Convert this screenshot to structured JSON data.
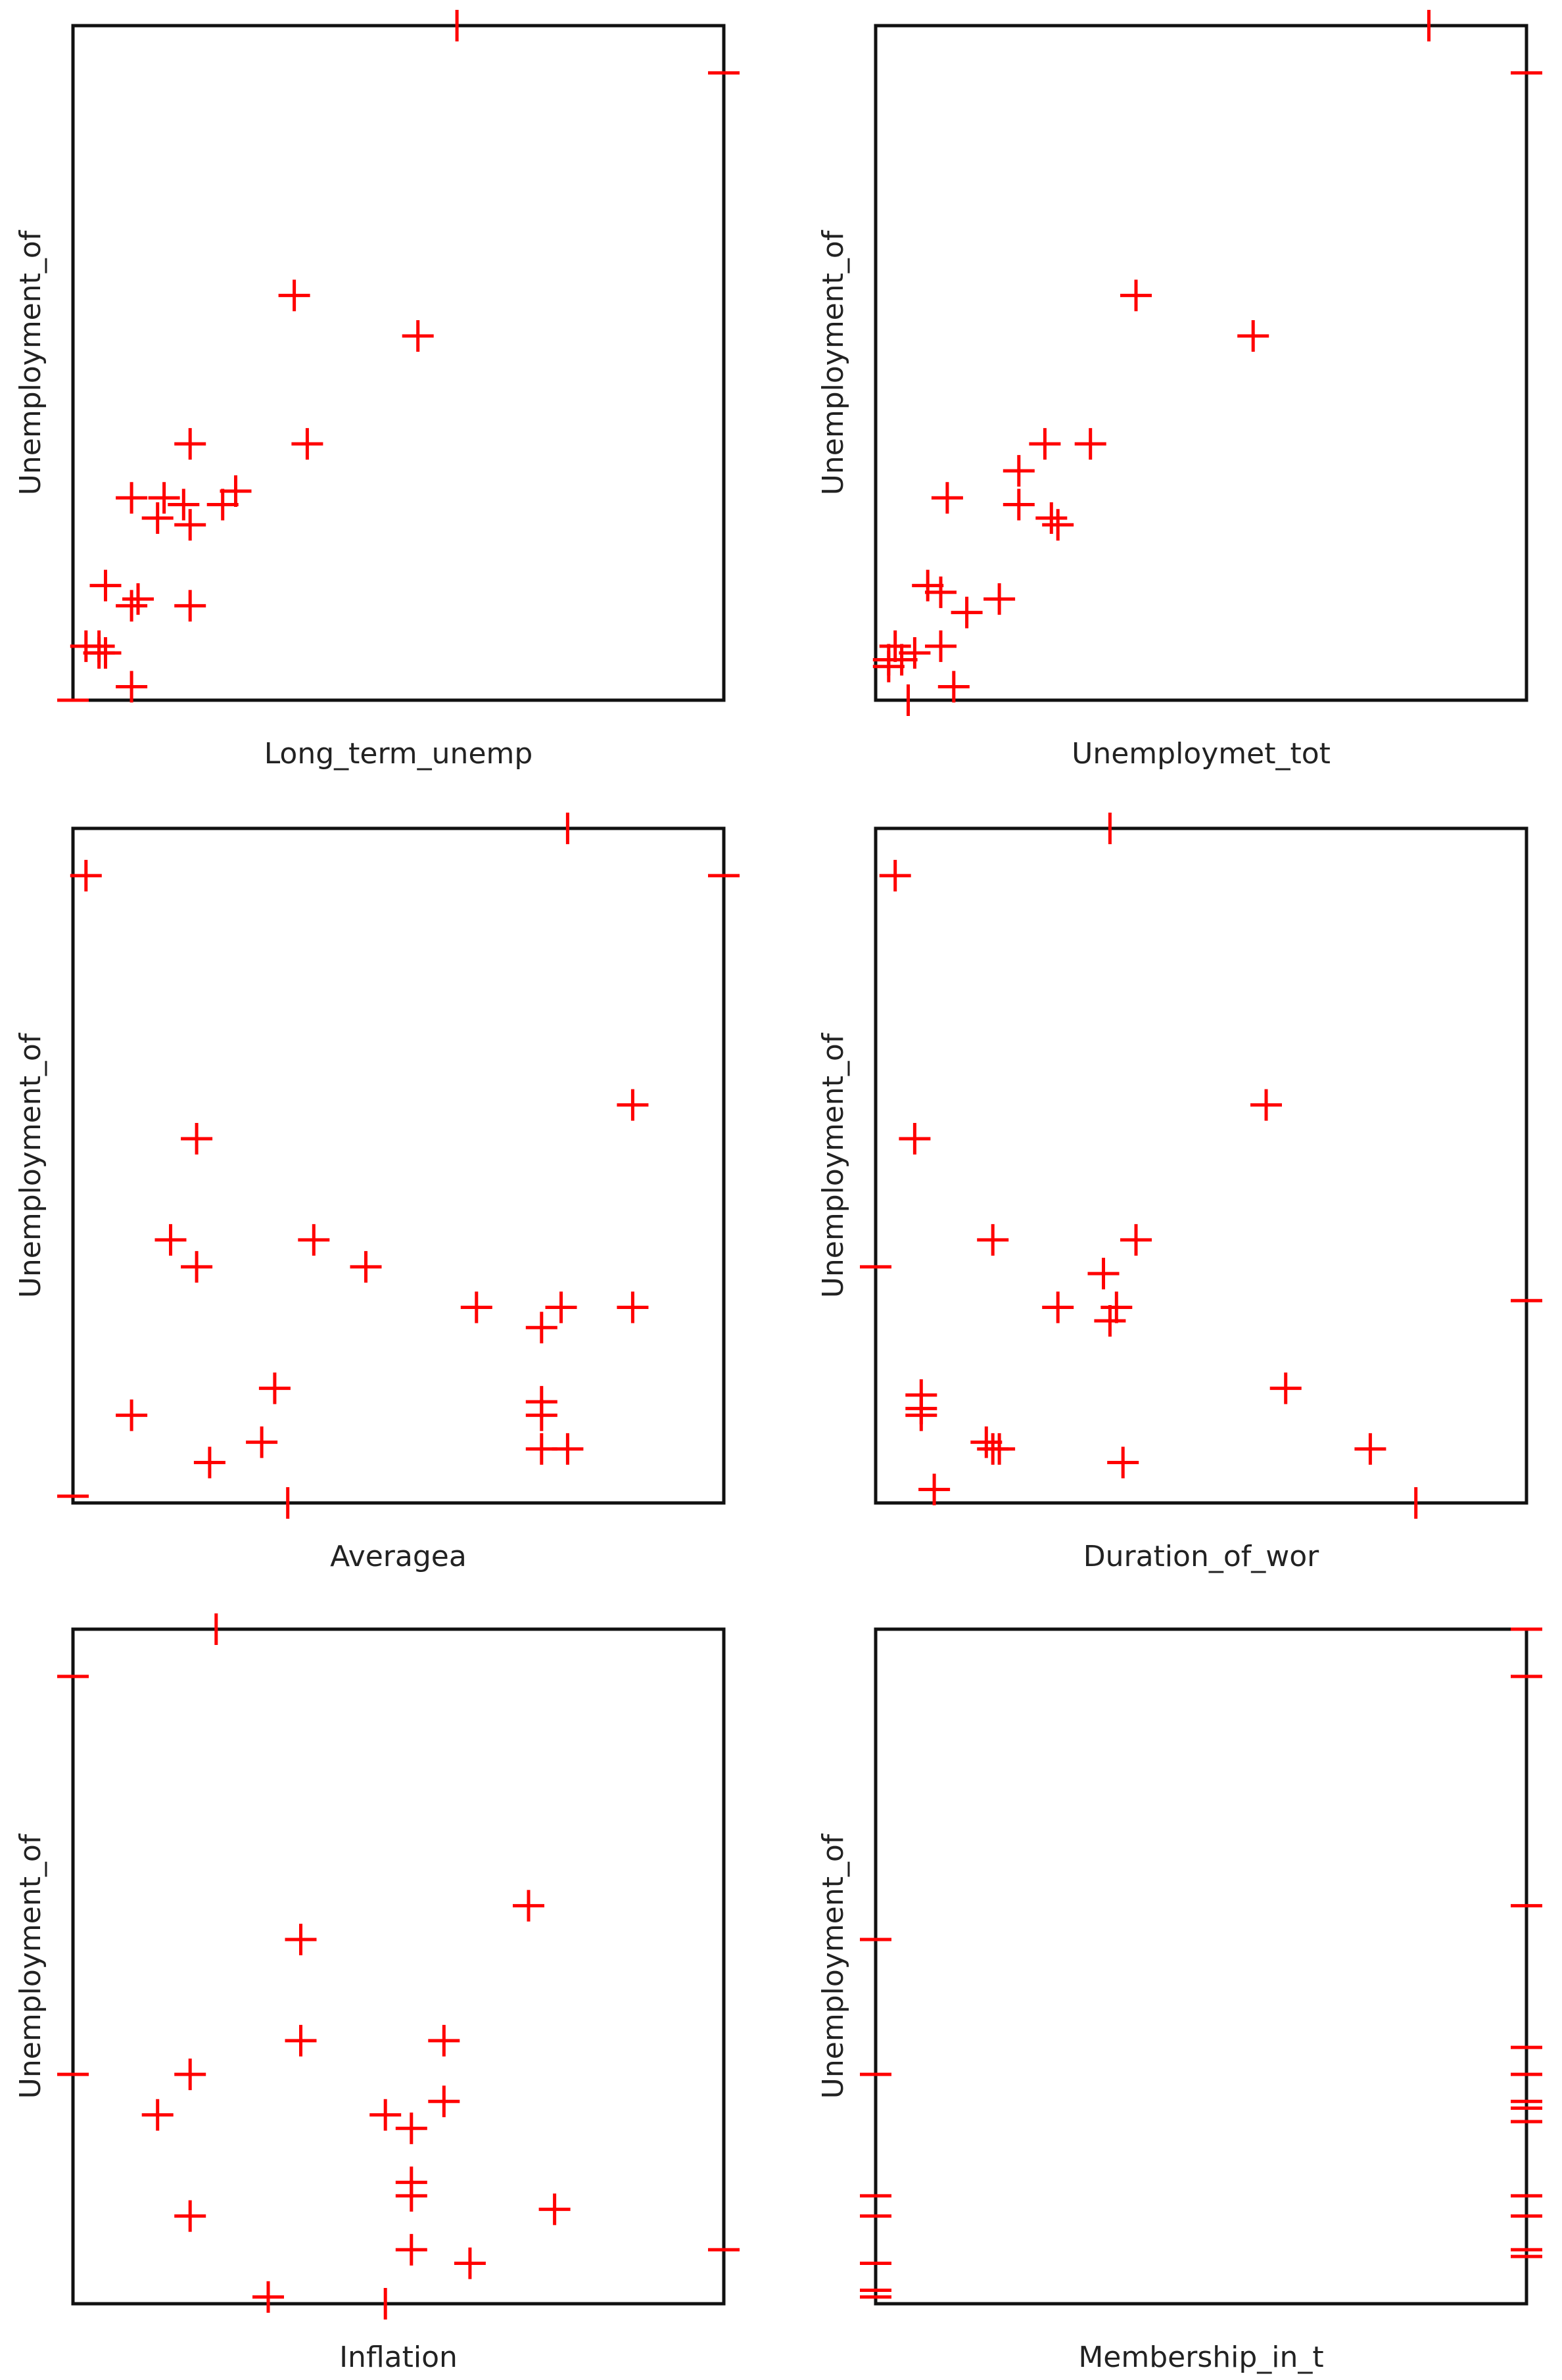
{
  "colors": {
    "marker": "#ff0000",
    "frame": "#111111",
    "text": "#222222"
  },
  "chart_data": [
    {
      "type": "scatter",
      "xlabel": "Long_term_unemp",
      "ylabel": "Unemployment_of",
      "xlim": [
        0,
        100
      ],
      "ylim": [
        0,
        100
      ],
      "points": [
        [
          34,
          60
        ],
        [
          53,
          54
        ],
        [
          36,
          38
        ],
        [
          18,
          38
        ],
        [
          25,
          31
        ],
        [
          14,
          30
        ],
        [
          9,
          30
        ],
        [
          13,
          27
        ],
        [
          17,
          29
        ],
        [
          23,
          29
        ],
        [
          18,
          26
        ],
        [
          5,
          17
        ],
        [
          10,
          15
        ],
        [
          18,
          14
        ],
        [
          9,
          14
        ],
        [
          4,
          8
        ],
        [
          2,
          8
        ],
        [
          4,
          7
        ],
        [
          5,
          7
        ],
        [
          9,
          2
        ]
      ],
      "edge_ticks": [
        {
          "side": "top",
          "pos": 59
        },
        {
          "side": "right",
          "pos": 93
        },
        {
          "side": "left",
          "pos": 0
        }
      ]
    },
    {
      "type": "scatter",
      "xlabel": "Unemploymet_tot",
      "ylabel": "Unemployment_of",
      "xlim": [
        0,
        100
      ],
      "ylim": [
        0,
        100
      ],
      "points": [
        [
          40,
          60
        ],
        [
          58,
          54
        ],
        [
          33,
          38
        ],
        [
          26,
          38
        ],
        [
          22,
          34
        ],
        [
          11,
          30
        ],
        [
          22,
          29
        ],
        [
          27,
          27
        ],
        [
          28,
          26
        ],
        [
          8,
          17
        ],
        [
          10,
          16
        ],
        [
          14,
          13
        ],
        [
          19,
          15
        ],
        [
          6,
          7
        ],
        [
          3,
          8
        ],
        [
          2,
          6
        ],
        [
          4,
          6
        ],
        [
          10,
          8
        ],
        [
          2,
          5
        ],
        [
          12,
          2
        ]
      ],
      "edge_ticks": [
        {
          "side": "top",
          "pos": 85
        },
        {
          "side": "right",
          "pos": 93
        },
        {
          "side": "bottom",
          "pos": 5
        }
      ]
    },
    {
      "type": "scatter",
      "xlabel": "Averagea",
      "ylabel": "Unemployment_of",
      "xlim": [
        0,
        100
      ],
      "ylim": [
        0,
        100
      ],
      "points": [
        [
          2,
          93
        ],
        [
          86,
          59
        ],
        [
          19,
          54
        ],
        [
          15,
          39
        ],
        [
          37,
          39
        ],
        [
          19,
          35
        ],
        [
          45,
          35
        ],
        [
          62,
          29
        ],
        [
          75,
          29
        ],
        [
          86,
          29
        ],
        [
          72,
          26
        ],
        [
          31,
          17
        ],
        [
          72,
          15
        ],
        [
          72,
          13
        ],
        [
          9,
          13
        ],
        [
          29,
          9
        ],
        [
          72,
          8
        ],
        [
          76,
          8
        ],
        [
          21,
          6
        ]
      ],
      "edge_ticks": [
        {
          "side": "top",
          "pos": 76
        },
        {
          "side": "right",
          "pos": 93
        },
        {
          "side": "left",
          "pos": 1
        },
        {
          "side": "bottom",
          "pos": 33
        }
      ]
    },
    {
      "type": "scatter",
      "xlabel": "Duration_of_wor",
      "ylabel": "Unemployment_of",
      "xlim": [
        0,
        100
      ],
      "ylim": [
        0,
        100
      ],
      "points": [
        [
          3,
          93
        ],
        [
          60,
          59
        ],
        [
          6,
          54
        ],
        [
          18,
          39
        ],
        [
          40,
          39
        ],
        [
          35,
          34
        ],
        [
          28,
          29
        ],
        [
          37,
          29
        ],
        [
          36,
          27
        ],
        [
          63,
          17
        ],
        [
          7,
          16
        ],
        [
          7,
          14
        ],
        [
          7,
          13
        ],
        [
          17,
          9
        ],
        [
          18,
          8
        ],
        [
          19,
          8
        ],
        [
          76,
          8
        ],
        [
          38,
          6
        ],
        [
          9,
          2
        ]
      ],
      "edge_ticks": [
        {
          "side": "top",
          "pos": 36
        },
        {
          "side": "right",
          "pos": 30
        },
        {
          "side": "left",
          "pos": 35
        },
        {
          "side": "bottom",
          "pos": 83
        }
      ]
    },
    {
      "type": "scatter",
      "xlabel": "Inflation",
      "ylabel": "Unemployment_of",
      "xlim": [
        0,
        100
      ],
      "ylim": [
        0,
        100
      ],
      "points": [
        [
          70,
          59
        ],
        [
          35,
          54
        ],
        [
          35,
          39
        ],
        [
          57,
          39
        ],
        [
          18,
          34
        ],
        [
          13,
          28
        ],
        [
          48,
          28
        ],
        [
          52,
          26
        ],
        [
          57,
          30
        ],
        [
          52,
          18
        ],
        [
          52,
          16
        ],
        [
          18,
          13
        ],
        [
          74,
          14
        ],
        [
          52,
          8
        ],
        [
          61,
          6
        ],
        [
          30,
          1
        ]
      ],
      "edge_ticks": [
        {
          "side": "top",
          "pos": 22
        },
        {
          "side": "left",
          "pos": 93
        },
        {
          "side": "left",
          "pos": 34
        },
        {
          "side": "right",
          "pos": 8
        },
        {
          "side": "bottom",
          "pos": 48
        }
      ]
    },
    {
      "type": "scatter",
      "xlabel": "Membership_in_t",
      "ylabel": "Unemployment_of",
      "xlim": [
        0,
        100
      ],
      "ylim": [
        0,
        100
      ],
      "points": [],
      "edge_ticks": [
        {
          "side": "right",
          "pos": 100
        },
        {
          "side": "right",
          "pos": 93
        },
        {
          "side": "right",
          "pos": 59
        },
        {
          "side": "right",
          "pos": 38
        },
        {
          "side": "right",
          "pos": 34
        },
        {
          "side": "right",
          "pos": 30
        },
        {
          "side": "right",
          "pos": 29
        },
        {
          "side": "right",
          "pos": 27
        },
        {
          "side": "right",
          "pos": 16
        },
        {
          "side": "right",
          "pos": 13
        },
        {
          "side": "right",
          "pos": 8
        },
        {
          "side": "right",
          "pos": 7
        },
        {
          "side": "left",
          "pos": 54
        },
        {
          "side": "left",
          "pos": 34
        },
        {
          "side": "left",
          "pos": 16
        },
        {
          "side": "left",
          "pos": 13
        },
        {
          "side": "left",
          "pos": 6
        },
        {
          "side": "left",
          "pos": 2
        },
        {
          "side": "left",
          "pos": 1
        }
      ]
    }
  ]
}
